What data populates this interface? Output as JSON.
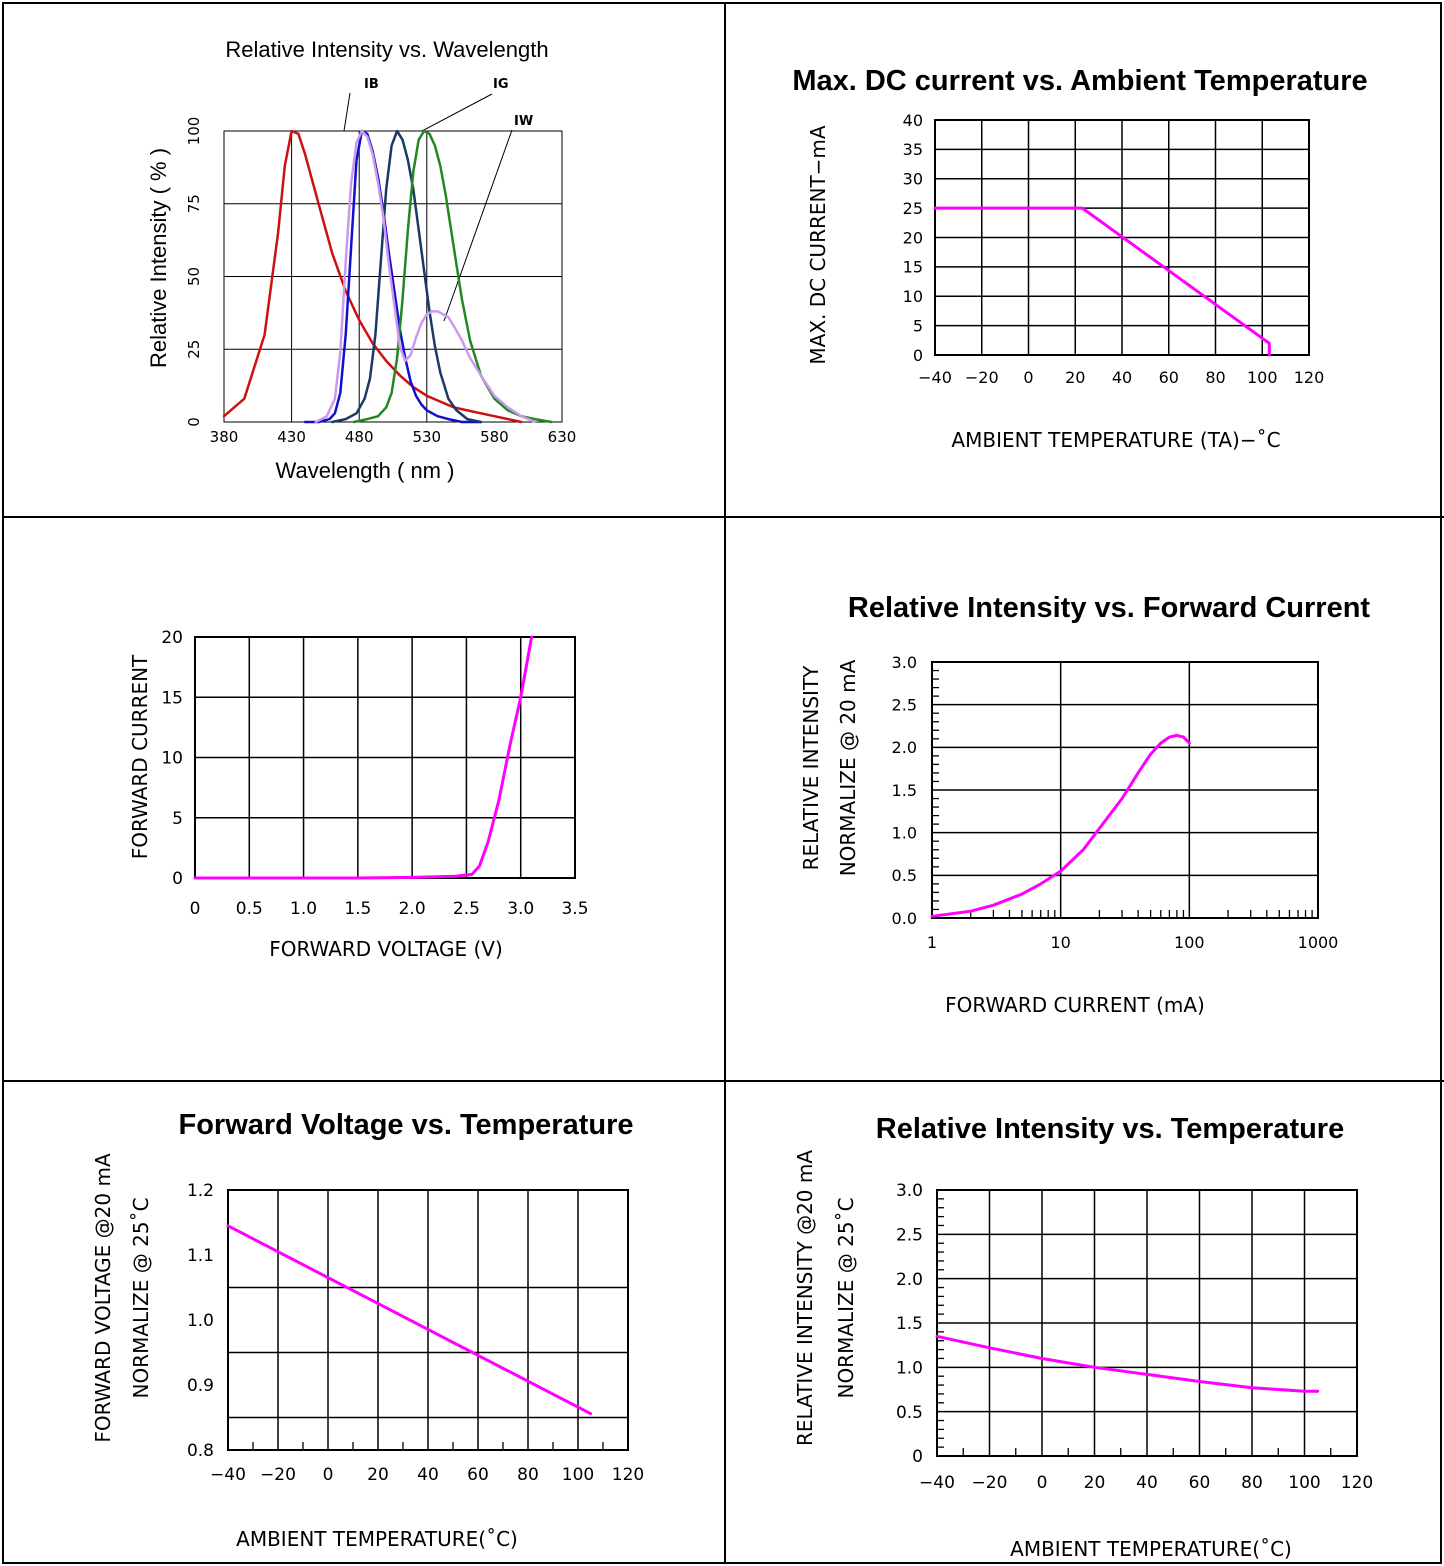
{
  "charts": {
    "spectrum": {
      "title": "Relative Intensity vs. Wavelength",
      "xlabel": "Wavelength ( nm )",
      "ylabel": "Relative Intensity ( % )",
      "xticks": [
        "380",
        "430",
        "480",
        "530",
        "580",
        "630"
      ],
      "yticks": [
        "0",
        "25",
        "50",
        "75",
        "100"
      ],
      "labels": {
        "ib": "IB",
        "ig": "IG",
        "iw": "IW"
      }
    },
    "maxdc": {
      "title": "Max. DC current vs. Ambient Temperature",
      "xlabel": "AMBIENT  TEMPERATURE  (TA)−˚C",
      "ylabel": "MAX.  DC  CURRENT−mA",
      "xticks": [
        "−40",
        "−20",
        "0",
        "20",
        "40",
        "60",
        "80",
        "100",
        "120"
      ],
      "yticks": [
        "0",
        "5",
        "10",
        "15",
        "20",
        "25",
        "30",
        "35",
        "40"
      ]
    },
    "ivcurve": {
      "xlabel": "FORWARD  VOLTAGE  (V)",
      "ylabel": "FORWARD  CURRENT",
      "xticks": [
        "0",
        "0.5",
        "1.0",
        "1.5",
        "2.0",
        "2.5",
        "3.0",
        "3.5"
      ],
      "yticks": [
        "0",
        "5",
        "10",
        "15",
        "20"
      ]
    },
    "rif": {
      "title": "Relative Intensity vs. Forward Current",
      "xlabel": "FORWARD  CURRENT  (mA)",
      "ylabel1": "RELATIVE  INTENSITY",
      "ylabel2": "NORMALIZE  @  20  mA",
      "xticks": [
        "1",
        "10",
        "100",
        "1000"
      ],
      "yticks": [
        "0.0",
        "0.5",
        "1.0",
        "1.5",
        "2.0",
        "2.5",
        "3.0"
      ]
    },
    "fvt": {
      "title": "Forward Voltage vs. Temperature",
      "xlabel": "AMBIENT  TEMPERATURE(˚C)",
      "ylabel1": "FORWARD  VOLTAGE  @20  mA",
      "ylabel2": "NORMALIZE  @  25˚C",
      "xticks": [
        "−40",
        "−20",
        "0",
        "20",
        "40",
        "60",
        "80",
        "100",
        "120"
      ],
      "yticks": [
        "0.8",
        "0.9",
        "1.0",
        "1.1",
        "1.2"
      ]
    },
    "rit": {
      "title": "Relative Intensity vs. Temperature",
      "xlabel": "AMBIENT  TEMPERATURE(˚C)",
      "ylabel1": "RELATIVE  INTENSITY  @20  mA",
      "ylabel2": "NORMALIZE  @  25˚C",
      "xticks": [
        "−40",
        "−20",
        "0",
        "20",
        "40",
        "60",
        "80",
        "100",
        "120"
      ],
      "yticks": [
        "0",
        "0.5",
        "1.0",
        "1.5",
        "2.0",
        "2.5",
        "3.0"
      ]
    }
  },
  "chart_data": [
    {
      "type": "line",
      "title": "Relative Intensity vs. Wavelength",
      "xlabel": "Wavelength ( nm )",
      "ylabel": "Relative Intensity ( % )",
      "xlim": [
        380,
        630
      ],
      "ylim": [
        0,
        100
      ],
      "grid": true,
      "series": [
        {
          "color": "#cc1111",
          "x": [
            380,
            395,
            410,
            420,
            425,
            430,
            435,
            440,
            450,
            460,
            470,
            480,
            490,
            500,
            510,
            520,
            530,
            540,
            550,
            560,
            570,
            580,
            590,
            600
          ],
          "y": [
            2,
            8,
            30,
            65,
            88,
            100,
            99,
            92,
            75,
            58,
            45,
            35,
            27,
            21,
            16,
            12,
            9,
            7,
            5,
            4,
            3,
            2,
            1,
            0
          ]
        },
        {
          "color": "#1111cc",
          "name": "IB",
          "x": [
            440,
            450,
            458,
            462,
            466,
            470,
            474,
            478,
            482,
            486,
            490,
            494,
            498,
            502,
            506,
            510,
            514,
            518,
            522,
            526,
            530,
            538,
            546,
            556,
            570
          ],
          "y": [
            0,
            0,
            1,
            3,
            10,
            30,
            60,
            90,
            100,
            99,
            93,
            84,
            72,
            58,
            45,
            32,
            22,
            14,
            9,
            6,
            4,
            2,
            1,
            0,
            0
          ]
        },
        {
          "color": "#1a3a66",
          "x": [
            460,
            470,
            478,
            484,
            488,
            492,
            496,
            500,
            504,
            508,
            512,
            516,
            520,
            524,
            528,
            532,
            536,
            540,
            546,
            552,
            560,
            570
          ],
          "y": [
            0,
            1,
            3,
            8,
            15,
            30,
            55,
            80,
            95,
            100,
            97,
            90,
            80,
            66,
            52,
            38,
            26,
            17,
            8,
            4,
            1,
            0
          ]
        },
        {
          "color": "#228822",
          "name": "IG",
          "x": [
            476,
            486,
            494,
            500,
            504,
            508,
            512,
            516,
            520,
            524,
            528,
            532,
            536,
            540,
            544,
            548,
            552,
            556,
            562,
            570,
            580,
            590,
            600,
            610,
            622
          ],
          "y": [
            0,
            1,
            2,
            5,
            10,
            22,
            42,
            66,
            86,
            97,
            100,
            99,
            95,
            88,
            78,
            66,
            54,
            42,
            28,
            16,
            8,
            4,
            2,
            1,
            0
          ]
        },
        {
          "color": "#cc99ee",
          "name": "IW",
          "x": [
            448,
            456,
            462,
            466,
            470,
            474,
            478,
            482,
            486,
            490,
            494,
            498,
            502,
            506,
            510,
            514,
            518,
            522,
            526,
            530,
            534,
            538,
            542,
            546,
            550,
            556,
            562,
            570,
            580,
            590,
            600,
            610
          ],
          "y": [
            0,
            2,
            8,
            24,
            55,
            82,
            96,
            100,
            98,
            92,
            82,
            70,
            54,
            40,
            26,
            21,
            23,
            29,
            34,
            37,
            38,
            38,
            37,
            36,
            33,
            28,
            22,
            16,
            9,
            5,
            2,
            0
          ]
        }
      ]
    },
    {
      "type": "line",
      "title": "Max. DC current vs. Ambient Temperature",
      "xlabel": "AMBIENT  TEMPERATURE  (TA)−˚C",
      "ylabel": "MAX.  DC  CURRENT−mA",
      "xlim": [
        -40,
        120
      ],
      "ylim": [
        0,
        40
      ],
      "grid": true,
      "series": [
        {
          "color": "#ff00ff",
          "x": [
            -40,
            23,
            103,
            103
          ],
          "y": [
            25,
            25,
            2,
            0
          ]
        }
      ]
    },
    {
      "type": "line",
      "xlabel": "FORWARD  VOLTAGE  (V)",
      "ylabel": "FORWARD  CURRENT",
      "xlim": [
        0,
        3.5
      ],
      "ylim": [
        0,
        20
      ],
      "grid": true,
      "series": [
        {
          "color": "#ff00ff",
          "x": [
            0,
            0.5,
            1.0,
            1.5,
            2.0,
            2.4,
            2.55,
            2.62,
            2.7,
            2.8,
            2.9,
            3.0,
            3.1
          ],
          "y": [
            0,
            0,
            0,
            0,
            0.05,
            0.15,
            0.3,
            1,
            3,
            6.5,
            11,
            15,
            20
          ]
        }
      ]
    },
    {
      "type": "line",
      "title": "Relative Intensity vs. Forward Current",
      "xlabel": "FORWARD  CURRENT  (mA)",
      "ylabel": "RELATIVE  INTENSITY  NORMALIZE  @  20  mA",
      "xscale": "log",
      "xlim": [
        1,
        1000
      ],
      "ylim": [
        0,
        3.0
      ],
      "grid": true,
      "series": [
        {
          "color": "#ff00ff",
          "x": [
            1,
            2,
            3,
            5,
            7,
            10,
            15,
            20,
            30,
            40,
            50,
            60,
            70,
            80,
            90,
            100
          ],
          "y": [
            0.02,
            0.08,
            0.15,
            0.28,
            0.4,
            0.55,
            0.8,
            1.05,
            1.4,
            1.7,
            1.92,
            2.05,
            2.12,
            2.14,
            2.12,
            2.05
          ]
        }
      ]
    },
    {
      "type": "line",
      "title": "Forward Voltage vs. Temperature",
      "xlabel": "AMBIENT  TEMPERATURE(˚C)",
      "ylabel": "FORWARD  VOLTAGE  @20  mA  NORMALIZE  @  25˚C",
      "xlim": [
        -40,
        120
      ],
      "ylim": [
        0.8,
        1.2
      ],
      "grid": true,
      "series": [
        {
          "color": "#ff00ff",
          "x": [
            -40,
            105
          ],
          "y": [
            1.145,
            0.856
          ]
        }
      ]
    },
    {
      "type": "line",
      "title": "Relative Intensity vs. Temperature",
      "xlabel": "AMBIENT  TEMPERATURE(˚C)",
      "ylabel": "RELATIVE  INTENSITY  @20  mA  NORMALIZE  @  25˚C",
      "xlim": [
        -40,
        120
      ],
      "ylim": [
        0,
        3.0
      ],
      "grid": true,
      "series": [
        {
          "color": "#ff00ff",
          "x": [
            -40,
            -20,
            0,
            20,
            40,
            60,
            80,
            100,
            105
          ],
          "y": [
            1.35,
            1.22,
            1.1,
            1.0,
            0.92,
            0.84,
            0.77,
            0.73,
            0.73
          ]
        }
      ]
    }
  ]
}
